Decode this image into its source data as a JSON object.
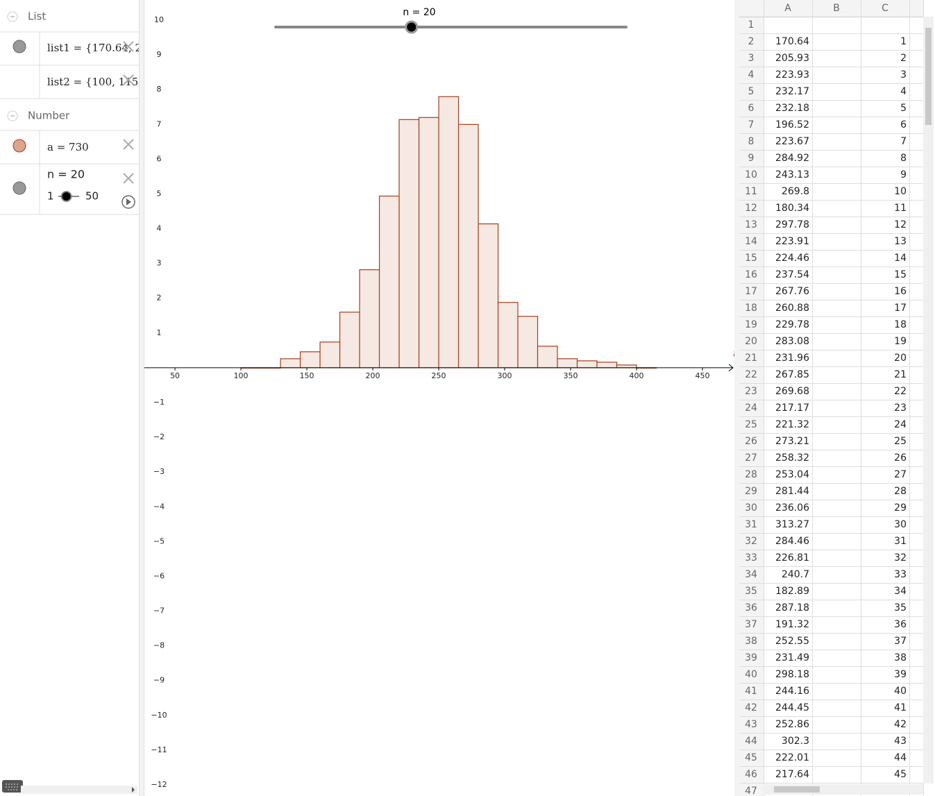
{
  "algebra": {
    "groups": [
      {
        "title": "List",
        "items": [
          {
            "text": "list1 = {170.64, 2"
          },
          {
            "text": "list2 = {100, 115,"
          }
        ]
      },
      {
        "title": "Number",
        "items": [
          {
            "text": "a = 730"
          },
          {
            "text": "n = 20",
            "slider_min": 1,
            "slider_max": 50,
            "slider_value": 20
          }
        ]
      }
    ]
  },
  "graphics": {
    "slider": {
      "label": "n = 20",
      "min": 1,
      "max": 50,
      "value": 20
    },
    "x_label": "a",
    "xlim": [
      26.8,
      474.2
    ],
    "ylim": [
      -12.32,
      10.58
    ],
    "xticks": [
      50,
      100,
      150,
      200,
      250,
      300,
      350,
      400,
      450
    ],
    "yticks": [
      {
        "value": -12,
        "label": "−12"
      },
      {
        "value": -11,
        "label": "−11"
      },
      {
        "value": -10,
        "label": "−10"
      },
      {
        "value": -9,
        "label": "−9"
      },
      {
        "value": -8,
        "label": "−8"
      },
      {
        "value": -7,
        "label": "−7"
      },
      {
        "value": -6,
        "label": "−6"
      },
      {
        "value": -5,
        "label": "−5"
      },
      {
        "value": -4,
        "label": "−4"
      },
      {
        "value": -3,
        "label": "−3"
      },
      {
        "value": -2,
        "label": "−2"
      },
      {
        "value": -1,
        "label": "−1"
      },
      1,
      2,
      3,
      4,
      5,
      6,
      7,
      8,
      9,
      10
    ],
    "histogram": {
      "color": "#a0401a",
      "fill": "#f6e8e3",
      "bins": [
        100,
        115,
        130,
        145,
        160,
        175,
        190,
        205,
        220,
        235,
        250,
        265,
        280,
        295,
        310,
        325,
        340,
        355,
        370,
        385,
        400,
        415
      ],
      "densities": [
        0,
        0,
        0.26,
        0.46,
        0.74,
        1.6,
        2.82,
        4.94,
        7.14,
        7.2,
        7.8,
        7.0,
        4.14,
        1.88,
        1.48,
        0.62,
        0.26,
        0.2,
        0.16,
        0.08,
        0
      ]
    }
  },
  "spreadsheet": {
    "columns": [
      "A",
      "B",
      "C"
    ],
    "row_labels": [
      1,
      2,
      3,
      4,
      5,
      6,
      7,
      8,
      9,
      10,
      11,
      12,
      13,
      14,
      15,
      16,
      17,
      18,
      19,
      20,
      21,
      22,
      23,
      24,
      25,
      26,
      27,
      28,
      29,
      30,
      31,
      32,
      33,
      34,
      35,
      36,
      37,
      38,
      39,
      40,
      41,
      42,
      43,
      44,
      45,
      46,
      47
    ],
    "rows": [
      [
        170.64,
        1
      ],
      [
        205.93,
        2
      ],
      [
        223.93,
        3
      ],
      [
        232.17,
        4
      ],
      [
        232.18,
        5
      ],
      [
        196.52,
        6
      ],
      [
        223.67,
        7
      ],
      [
        284.92,
        8
      ],
      [
        243.13,
        9
      ],
      [
        269.8,
        10
      ],
      [
        180.34,
        11
      ],
      [
        297.78,
        12
      ],
      [
        223.91,
        13
      ],
      [
        224.46,
        14
      ],
      [
        237.54,
        15
      ],
      [
        267.76,
        16
      ],
      [
        260.88,
        17
      ],
      [
        229.78,
        18
      ],
      [
        283.08,
        19
      ],
      [
        231.96,
        20
      ],
      [
        267.85,
        21
      ],
      [
        269.68,
        22
      ],
      [
        217.17,
        23
      ],
      [
        221.32,
        24
      ],
      [
        273.21,
        25
      ],
      [
        258.32,
        26
      ],
      [
        253.04,
        27
      ],
      [
        281.44,
        28
      ],
      [
        236.06,
        29
      ],
      [
        313.27,
        30
      ],
      [
        284.46,
        31
      ],
      [
        226.81,
        32
      ],
      [
        240.7,
        33
      ],
      [
        182.89,
        34
      ],
      [
        287.18,
        35
      ],
      [
        191.32,
        36
      ],
      [
        252.55,
        37
      ],
      [
        231.49,
        38
      ],
      [
        298.18,
        39
      ],
      [
        244.16,
        40
      ],
      [
        244.45,
        41
      ],
      [
        252.86,
        42
      ],
      [
        302.3,
        43
      ],
      [
        222.01,
        44
      ],
      [
        217.64,
        45
      ]
    ]
  }
}
